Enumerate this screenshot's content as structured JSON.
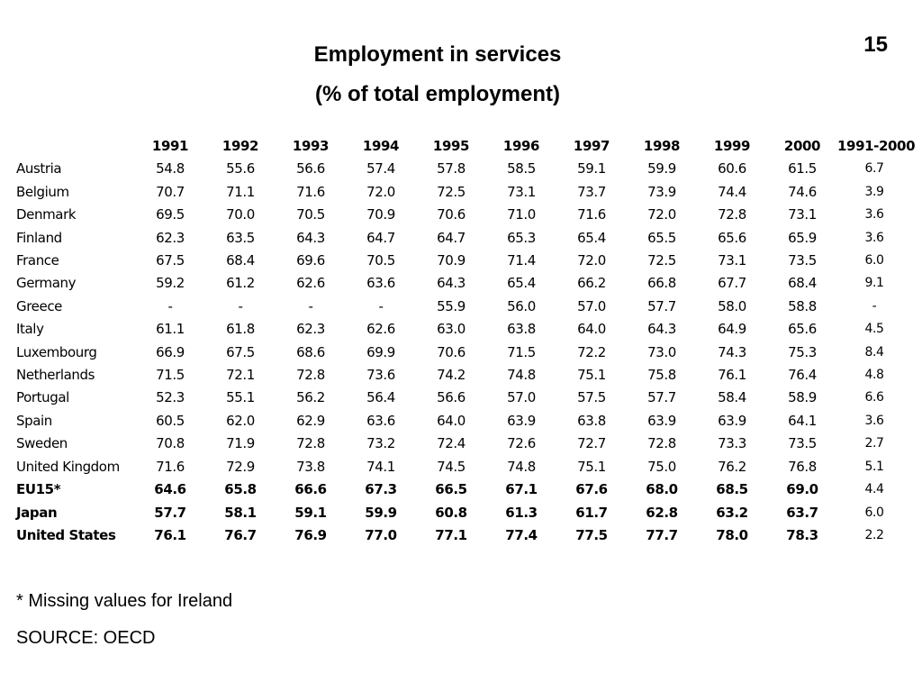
{
  "page_number": "15",
  "title_line1": "Employment in services",
  "title_line2": "(% of total employment)",
  "table": {
    "headers": [
      "1991",
      "1992",
      "1993",
      "1994",
      "1995",
      "1996",
      "1997",
      "1998",
      "1999",
      "2000",
      "1991-2000"
    ],
    "rows": [
      {
        "country": "Austria",
        "values": [
          "54.8",
          "55.6",
          "56.6",
          "57.4",
          "57.8",
          "58.5",
          "59.1",
          "59.9",
          "60.6",
          "61.5"
        ],
        "change": "6.7",
        "bold": false
      },
      {
        "country": "Belgium",
        "values": [
          "70.7",
          "71.1",
          "71.6",
          "72.0",
          "72.5",
          "73.1",
          "73.7",
          "73.9",
          "74.4",
          "74.6"
        ],
        "change": "3.9",
        "bold": false
      },
      {
        "country": "Denmark",
        "values": [
          "69.5",
          "70.0",
          "70.5",
          "70.9",
          "70.6",
          "71.0",
          "71.6",
          "72.0",
          "72.8",
          "73.1"
        ],
        "change": "3.6",
        "bold": false
      },
      {
        "country": "Finland",
        "values": [
          "62.3",
          "63.5",
          "64.3",
          "64.7",
          "64.7",
          "65.3",
          "65.4",
          "65.5",
          "65.6",
          "65.9"
        ],
        "change": "3.6",
        "bold": false
      },
      {
        "country": "France",
        "values": [
          "67.5",
          "68.4",
          "69.6",
          "70.5",
          "70.9",
          "71.4",
          "72.0",
          "72.5",
          "73.1",
          "73.5"
        ],
        "change": "6.0",
        "bold": false
      },
      {
        "country": "Germany",
        "values": [
          "59.2",
          "61.2",
          "62.6",
          "63.6",
          "64.3",
          "65.4",
          "66.2",
          "66.8",
          "67.7",
          "68.4"
        ],
        "change": "9.1",
        "bold": false
      },
      {
        "country": "Greece",
        "values": [
          "-",
          "-",
          "-",
          "-",
          "55.9",
          "56.0",
          "57.0",
          "57.7",
          "58.0",
          "58.8"
        ],
        "change": "-",
        "bold": false
      },
      {
        "country": "Italy",
        "values": [
          "61.1",
          "61.8",
          "62.3",
          "62.6",
          "63.0",
          "63.8",
          "64.0",
          "64.3",
          "64.9",
          "65.6"
        ],
        "change": "4.5",
        "bold": false
      },
      {
        "country": "Luxembourg",
        "values": [
          "66.9",
          "67.5",
          "68.6",
          "69.9",
          "70.6",
          "71.5",
          "72.2",
          "73.0",
          "74.3",
          "75.3"
        ],
        "change": "8.4",
        "bold": false
      },
      {
        "country": "Netherlands",
        "values": [
          "71.5",
          "72.1",
          "72.8",
          "73.6",
          "74.2",
          "74.8",
          "75.1",
          "75.8",
          "76.1",
          "76.4"
        ],
        "change": "4.8",
        "bold": false
      },
      {
        "country": "Portugal",
        "values": [
          "52.3",
          "55.1",
          "56.2",
          "56.4",
          "56.6",
          "57.0",
          "57.5",
          "57.7",
          "58.4",
          "58.9"
        ],
        "change": "6.6",
        "bold": false
      },
      {
        "country": "Spain",
        "values": [
          "60.5",
          "62.0",
          "62.9",
          "63.6",
          "64.0",
          "63.9",
          "63.8",
          "63.9",
          "63.9",
          "64.1"
        ],
        "change": "3.6",
        "bold": false
      },
      {
        "country": "Sweden",
        "values": [
          "70.8",
          "71.9",
          "72.8",
          "73.2",
          "72.4",
          "72.6",
          "72.7",
          "72.8",
          "73.3",
          "73.5"
        ],
        "change": "2.7",
        "bold": false
      },
      {
        "country": "United Kingdom",
        "values": [
          "71.6",
          "72.9",
          "73.8",
          "74.1",
          "74.5",
          "74.8",
          "75.1",
          "75.0",
          "76.2",
          "76.8"
        ],
        "change": "5.1",
        "bold": false
      },
      {
        "country": "EU15*",
        "values": [
          "64.6",
          "65.8",
          "66.6",
          "67.3",
          "66.5",
          "67.1",
          "67.6",
          "68.0",
          "68.5",
          "69.0"
        ],
        "change": "4.4",
        "bold": true
      },
      {
        "country": "Japan",
        "values": [
          "57.7",
          "58.1",
          "59.1",
          "59.9",
          "60.8",
          "61.3",
          "61.7",
          "62.8",
          "63.2",
          "63.7"
        ],
        "change": "6.0",
        "bold": true
      },
      {
        "country": "United States",
        "values": [
          "76.1",
          "76.7",
          "76.9",
          "77.0",
          "77.1",
          "77.4",
          "77.5",
          "77.7",
          "78.0",
          "78.3"
        ],
        "change": "2.2",
        "bold": true
      }
    ]
  },
  "footnote_missing": "* Missing values for Ireland",
  "footnote_source": "SOURCE: OECD"
}
